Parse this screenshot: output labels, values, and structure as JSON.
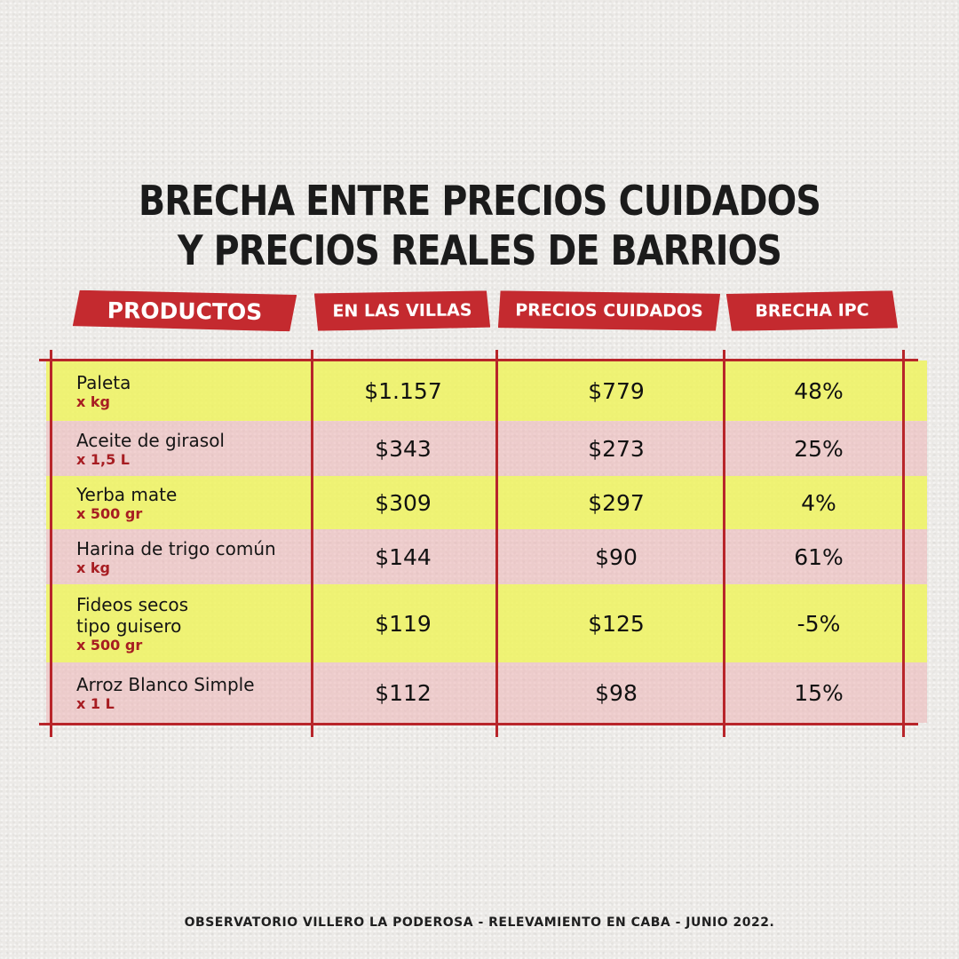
{
  "title": {
    "line1": "BRECHA ENTRE PRECIOS CUIDADOS",
    "line2": "Y PRECIOS REALES DE BARRIOS"
  },
  "headers": {
    "productos": "PRODUCTOS",
    "villas": "EN LAS VILLAS",
    "cuidados": "PRECIOS CUIDADOS",
    "brecha": "BRECHA IPC"
  },
  "rows": [
    {
      "name": [
        "Paleta"
      ],
      "unit": "x kg",
      "villas": "$1.157",
      "cuidados": "$779",
      "brecha": "48%",
      "color": "yellow"
    },
    {
      "name": [
        "Aceite de girasol"
      ],
      "unit": "x 1,5 L",
      "villas": "$343",
      "cuidados": "$273",
      "brecha": "25%",
      "color": "pink"
    },
    {
      "name": [
        "Yerba mate"
      ],
      "unit": "x 500 gr",
      "villas": "$309",
      "cuidados": "$297",
      "brecha": "4%",
      "color": "yellow"
    },
    {
      "name": [
        "Harina de trigo común"
      ],
      "unit": "x kg",
      "villas": "$144",
      "cuidados": "$90",
      "brecha": "61%",
      "color": "pink"
    },
    {
      "name": [
        "Fideos secos",
        "tipo guisero"
      ],
      "unit": "x 500 gr",
      "villas": "$119",
      "cuidados": "$125",
      "brecha": "-5%",
      "color": "yellow"
    },
    {
      "name": [
        "Arroz Blanco Simple"
      ],
      "unit": "x 1 L",
      "villas": "$112",
      "cuidados": "$98",
      "brecha": "15%",
      "color": "pink"
    }
  ],
  "footer": "OBSERVATORIO VILLERO LA PODEROSA - RELEVAMIENTO EN CABA - JUNIO 2022."
}
